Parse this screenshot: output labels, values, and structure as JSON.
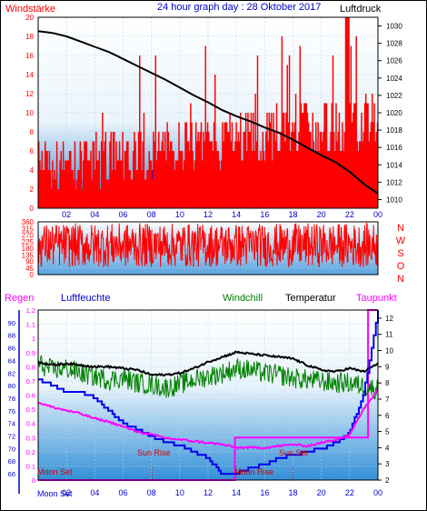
{
  "header": {
    "left_label": "Windstärke",
    "title": "24 hour graph day : 28 Oktober 2017",
    "right_label": "Luftdruck"
  },
  "middle": {
    "direction_letters": [
      "N",
      "W",
      "S",
      "O",
      "N"
    ]
  },
  "bottom_header": {
    "regen": "Regen",
    "luftfeuchte": "Luftfeuchte",
    "windchill": "Windchill",
    "temperatur": "Temperatur",
    "taupunkt": "Taupunkt"
  },
  "annotations": {
    "moon_set_left": "Moon Set",
    "sun_rise": "Sun Rise",
    "moon_rise": "Moon Rise",
    "sun_set": "Sun Set",
    "moon_set_bottom": "Moon Set"
  },
  "colors": {
    "wind_red": "#ff0000",
    "wind_blue": "#0000ff",
    "pressure_black": "#000000",
    "windchill_green": "#008000",
    "humidity_blue": "#0000ee",
    "dewpoint_magenta": "#ff00ff",
    "rain_pink": "#ff00ff",
    "title_blue": "#0000cc",
    "label_red": "#ff0000",
    "bg_top": "#ffffff",
    "bg_bottom": "#6ab0e6"
  },
  "chart_data": [
    {
      "type": "line",
      "title": "24 hour graph day : 28 Oktober 2017",
      "x_tick_labels": [
        "02",
        "04",
        "06",
        "08",
        "10",
        "12",
        "14",
        "16",
        "18",
        "20",
        "22",
        "00"
      ],
      "x_range_hours": [
        0,
        24
      ],
      "left_axis": {
        "label": "Windstärke",
        "ticks": [
          0,
          2,
          4,
          6,
          8,
          10,
          12,
          14,
          16,
          18,
          20
        ],
        "range": [
          0,
          20
        ]
      },
      "right_axis": {
        "label": "Luftdruck",
        "ticks": [
          1010,
          1012,
          1014,
          1016,
          1018,
          1020,
          1022,
          1024,
          1026,
          1028,
          1030
        ],
        "range": [
          1009,
          1031
        ]
      },
      "pressure": {
        "x": [
          0,
          1,
          2,
          3,
          4,
          5,
          6,
          7,
          8,
          9,
          10,
          11,
          12,
          13,
          14,
          15,
          16,
          17,
          18,
          19,
          20,
          21,
          22,
          23,
          24
        ],
        "values": [
          1029.4,
          1029.2,
          1028.8,
          1028.2,
          1027.6,
          1027.0,
          1026.2,
          1025.4,
          1024.6,
          1023.8,
          1022.9,
          1022.0,
          1021.2,
          1020.3,
          1019.6,
          1019.0,
          1018.3,
          1017.7,
          1016.9,
          1016.0,
          1015.1,
          1014.3,
          1013.2,
          1011.8,
          1010.7
        ]
      },
      "wind_gust_level_range": [
        2,
        20
      ],
      "wind_mean_level_range": [
        0,
        8
      ]
    },
    {
      "type": "line",
      "left_axis": {
        "ticks": [
          0,
          45,
          90,
          135,
          180,
          225,
          270,
          315,
          360
        ],
        "range": [
          0,
          360
        ]
      },
      "right_axis_letters": [
        "N",
        "W",
        "S",
        "O",
        "N"
      ],
      "wind_direction_range": [
        40,
        350
      ]
    },
    {
      "type": "line",
      "x_tick_labels": [
        "02",
        "04",
        "06",
        "08",
        "10",
        "12",
        "14",
        "16",
        "18",
        "20",
        "22",
        "00"
      ],
      "left_axis_regen": {
        "label": "Regen",
        "ticks": [
          0,
          0.1,
          0.2,
          0.3,
          0.4,
          0.5,
          0.6,
          0.7,
          0.8,
          0.9,
          1,
          1.1,
          1.2
        ],
        "range": [
          0,
          1.2
        ]
      },
      "left_axis_luftfeuchte": {
        "label": "Luftfeuchte",
        "ticks": [
          66,
          68,
          70,
          72,
          74,
          76,
          78,
          80,
          82,
          84,
          86,
          88,
          90
        ],
        "range": [
          65,
          92
        ]
      },
      "right_axis_temp": {
        "ticks": [
          2,
          3,
          4,
          5,
          6,
          7,
          8,
          9,
          10,
          11,
          12
        ],
        "range": [
          2,
          12.5
        ]
      },
      "series": [
        {
          "name": "Temperatur",
          "x": [
            0,
            1,
            2,
            3,
            4,
            5,
            6,
            7,
            8,
            9,
            10,
            11,
            12,
            13,
            14,
            15,
            16,
            17,
            18,
            19,
            20,
            21,
            22,
            23,
            24
          ],
          "values": [
            9.3,
            9.1,
            9.2,
            9.1,
            9.0,
            9.0,
            8.9,
            8.8,
            8.5,
            8.5,
            8.6,
            8.9,
            9.3,
            9.6,
            9.9,
            9.8,
            9.7,
            9.6,
            9.5,
            9.1,
            8.8,
            8.7,
            8.9,
            8.7,
            9.2
          ]
        },
        {
          "name": "Windchill",
          "x": [
            0,
            1,
            2,
            3,
            4,
            5,
            6,
            7,
            8,
            9,
            10,
            11,
            12,
            13,
            14,
            15,
            16,
            17,
            18,
            19,
            20,
            21,
            22,
            23,
            24
          ],
          "values": [
            9.2,
            8.8,
            8.9,
            8.6,
            8.4,
            8.2,
            8.3,
            8.0,
            7.9,
            7.7,
            7.9,
            8.2,
            8.4,
            8.6,
            8.9,
            8.8,
            8.6,
            8.5,
            8.3,
            8.2,
            8.1,
            8.0,
            8.0,
            7.8,
            7.6
          ]
        },
        {
          "name": "Luftfeuchte",
          "x": [
            0,
            1,
            2,
            3,
            4,
            5,
            6,
            7,
            8,
            9,
            10,
            11,
            12,
            13,
            14,
            15,
            16,
            17,
            18,
            19,
            20,
            21,
            22,
            23,
            24
          ],
          "values": [
            81,
            80,
            79,
            79,
            78,
            76,
            74,
            73,
            72,
            71,
            70.5,
            69.5,
            68.5,
            66,
            66,
            67,
            67.5,
            68.5,
            69,
            69.5,
            70,
            71,
            72.5,
            79,
            92
          ]
        },
        {
          "name": "Taupunkt",
          "x": [
            0,
            1,
            2,
            3,
            4,
            5,
            6,
            7,
            8,
            9,
            10,
            11,
            12,
            13,
            14,
            15,
            16,
            17,
            18,
            19,
            20,
            21,
            22,
            23,
            24
          ],
          "values": [
            6.8,
            6.5,
            6.3,
            6.1,
            5.8,
            5.6,
            5.3,
            5.0,
            4.8,
            4.6,
            4.5,
            4.4,
            4.3,
            4.2,
            4.0,
            4.0,
            4.0,
            4.1,
            4.2,
            4.1,
            4.3,
            4.5,
            4.8,
            6.4,
            7.6
          ]
        },
        {
          "name": "Regen",
          "x": [
            0,
            13.9,
            13.9,
            21.9,
            21.9,
            23.3,
            23.3,
            24
          ],
          "values": [
            0,
            0,
            0.3,
            0.3,
            0.3,
            0.3,
            1.2,
            1.2
          ]
        }
      ],
      "events": [
        {
          "label": "Sun Rise",
          "hour": 8.05
        },
        {
          "label": "Moon Rise",
          "hour": 14.0
        },
        {
          "label": "Sun Set",
          "hour": 18.0
        },
        {
          "label": "Moon Set",
          "hour": 0.0
        }
      ]
    }
  ]
}
